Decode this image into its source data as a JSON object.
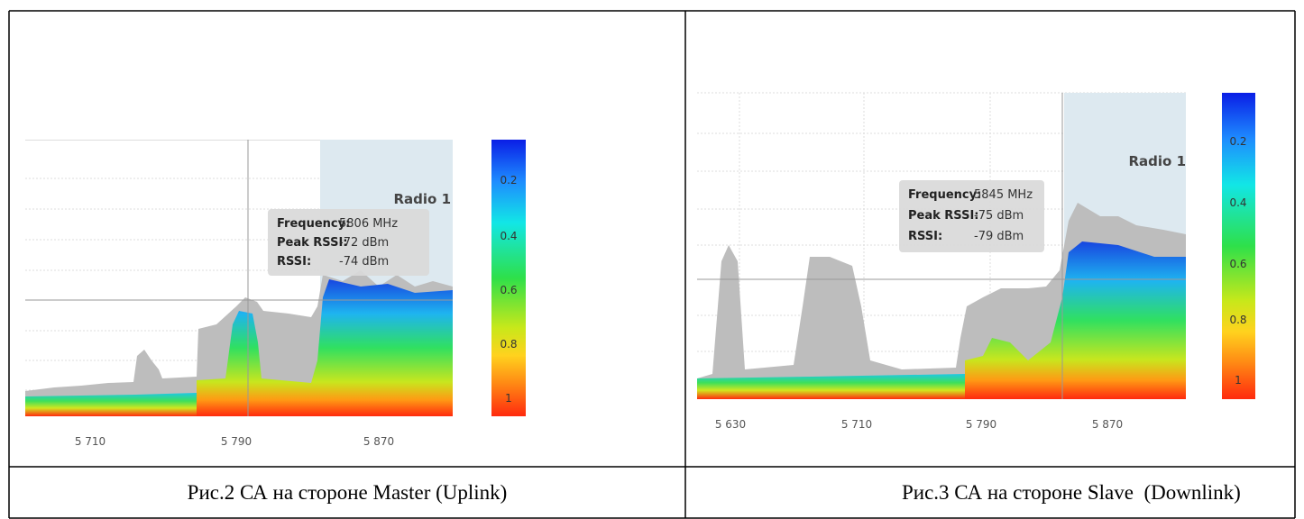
{
  "panels": [
    {
      "x_ticks": [
        "5 710",
        "5 790",
        "5 870"
      ],
      "colorbar_labels": [
        "0.2",
        "0.4",
        "0.6",
        "0.8",
        "1"
      ],
      "radio_label": "Radio 1",
      "tooltip": {
        "rows": [
          [
            "Frequency:",
            "5806 MHz"
          ],
          [
            "Peak RSSI:",
            "-72 dBm"
          ],
          [
            "RSSI:",
            "-74 dBm"
          ]
        ]
      },
      "caption": "Рис.2 СА на стороне Master (Uplink)"
    },
    {
      "x_ticks": [
        "5 630",
        "5 710",
        "5 790",
        "5 870"
      ],
      "colorbar_labels": [
        "0.2",
        "0.4",
        "0.6",
        "0.8",
        "1"
      ],
      "radio_label": "Radio 1",
      "tooltip": {
        "rows": [
          [
            "Frequency:",
            "5845 MHz"
          ],
          [
            "Peak RSSI:",
            "-75 dBm"
          ],
          [
            "RSSI:",
            "-79 dBm"
          ]
        ]
      },
      "caption": "Рис.3 СА на стороне Slave  (Downlink)"
    }
  ]
}
